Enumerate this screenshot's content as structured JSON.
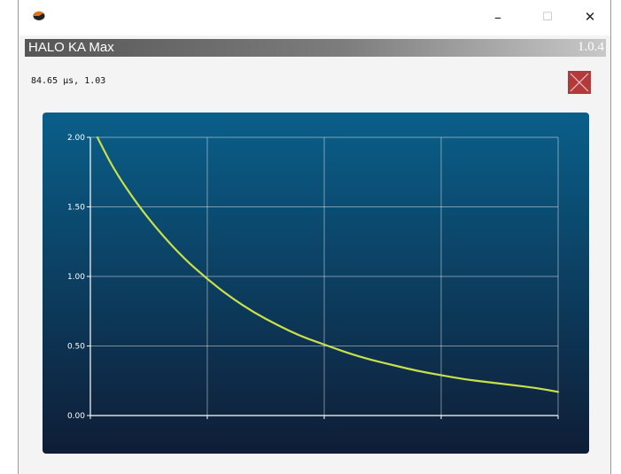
{
  "window": {
    "app_icon": "app-logo-icon",
    "minimize_icon": "minimize-icon",
    "maximize_icon": "maximize-icon",
    "close_icon": "close-icon",
    "minimize_glyph": "–",
    "maximize_glyph": "☐",
    "close_glyph": "✕"
  },
  "header": {
    "title": "HALO KA Max",
    "version": "1.0.4"
  },
  "readout": {
    "text": "84.65 µs, 1.03"
  },
  "panel_close": {
    "icon": "x-icon",
    "color": "#b33a3a"
  },
  "chart_data": {
    "type": "line",
    "title": "",
    "xlabel": "",
    "ylabel": "",
    "ylim": [
      0,
      2
    ],
    "xlim": [
      0,
      4
    ],
    "grid": true,
    "ytick_labels": [
      "0.00",
      "0.50",
      "1.00",
      "1.50",
      "2.00"
    ],
    "series": [
      {
        "color": "#c8e04a",
        "x": [
          0.06,
          0.2,
          0.4,
          0.6,
          0.8,
          1.0,
          1.2,
          1.4,
          1.6,
          1.8,
          2.0,
          2.2,
          2.4,
          2.6,
          2.8,
          3.0,
          3.2,
          3.4,
          3.6,
          3.8,
          4.0
        ],
        "y": [
          2.0,
          1.77,
          1.52,
          1.31,
          1.13,
          0.98,
          0.85,
          0.74,
          0.65,
          0.57,
          0.51,
          0.45,
          0.4,
          0.36,
          0.32,
          0.29,
          0.26,
          0.24,
          0.22,
          0.2,
          0.17
        ]
      }
    ]
  }
}
